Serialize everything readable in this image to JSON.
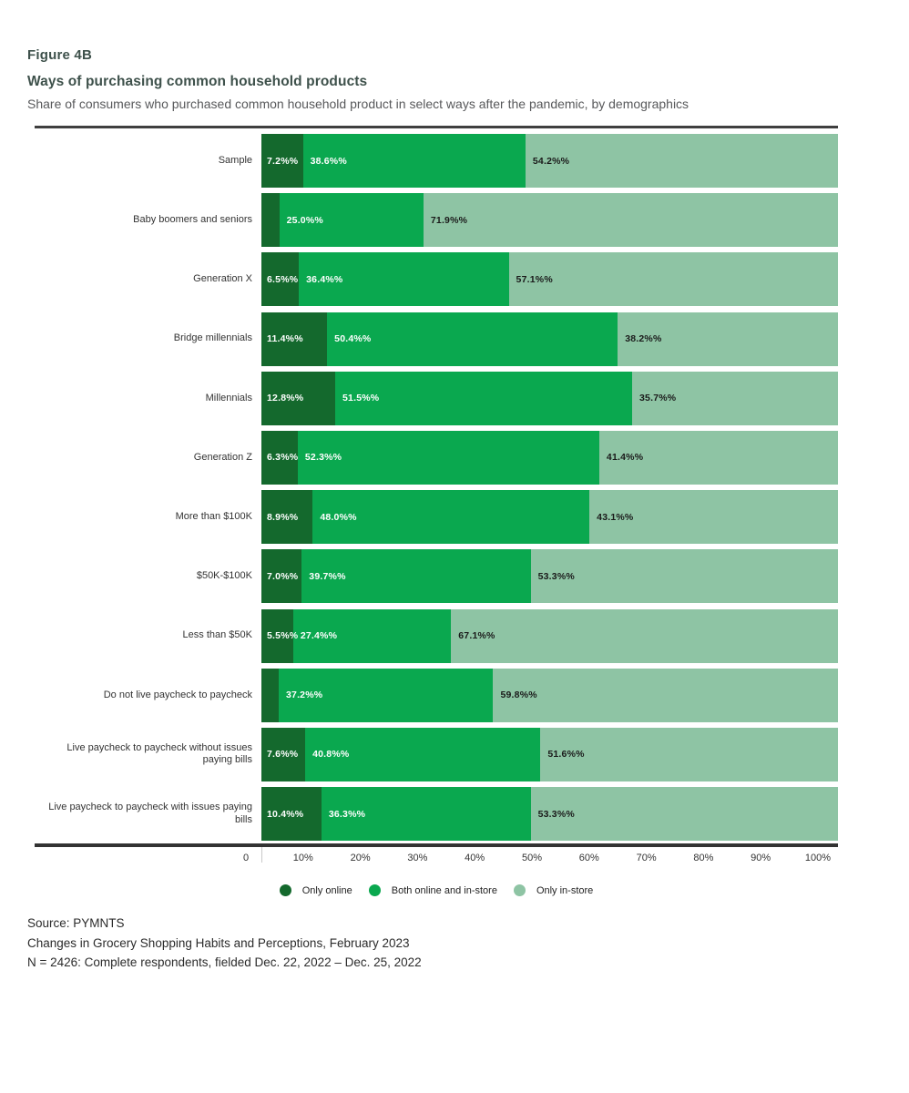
{
  "header": {
    "figure_label": "Figure 4B",
    "title": "Ways of purchasing common household products",
    "subtitle": "Share of consumers who purchased common household product in select ways after the pandemic, by demographics"
  },
  "chart_data": {
    "type": "bar",
    "orientation": "horizontal",
    "stacked": true,
    "unit": "percent",
    "xlim": [
      0,
      100
    ],
    "x_axis_ticks": [
      "0",
      "10%",
      "20%",
      "30%",
      "40%",
      "50%",
      "60%",
      "70%",
      "80%",
      "90%",
      "100%"
    ],
    "legend_position": "bottom",
    "categories": [
      "Sample",
      "Baby boomers and seniors",
      "Generation X",
      "Bridge millennials",
      "Millennials",
      "Generation Z",
      "More than $100K",
      "$50K-$100K",
      "Less than $50K",
      "Do not live paycheck to paycheck",
      "Live paycheck to paycheck without issues paying bills",
      "Live paycheck to paycheck with issues paying bills"
    ],
    "series": [
      {
        "name": "Only online",
        "color": "#14692d",
        "label_color": "#ffffff",
        "values": [
          7.2,
          3.1,
          6.5,
          11.4,
          12.8,
          6.3,
          8.9,
          7.0,
          5.5,
          3.0,
          7.6,
          10.4
        ],
        "labels": [
          "7.2%%",
          "",
          "6.5%%",
          "11.4%%",
          "12.8%%",
          "6.3%%",
          "8.9%%",
          "7.0%%",
          "5.5%%",
          "",
          "7.6%%",
          "10.4%%"
        ]
      },
      {
        "name": "Both online and in-store",
        "color": "#0aa84f",
        "label_color": "#ffffff",
        "values": [
          38.6,
          25.0,
          36.4,
          50.4,
          51.5,
          52.3,
          48.0,
          39.7,
          27.4,
          37.2,
          40.8,
          36.3
        ],
        "labels": [
          "38.6%%",
          "25.0%%",
          "36.4%%",
          "50.4%%",
          "51.5%%",
          "52.3%%",
          "48.0%%",
          "39.7%%",
          "27.4%%",
          "37.2%%",
          "40.8%%",
          "36.3%%"
        ]
      },
      {
        "name": "Only in-store",
        "color": "#8ec4a4",
        "label_color": "#1a1a1a",
        "values": [
          54.2,
          71.9,
          57.1,
          38.2,
          35.7,
          41.4,
          43.1,
          53.3,
          67.1,
          59.8,
          51.6,
          53.3
        ],
        "labels": [
          "54.2%%",
          "71.9%%",
          "57.1%%",
          "38.2%%",
          "35.7%%",
          "41.4%%",
          "43.1%%",
          "53.3%%",
          "67.1%%",
          "59.8%%",
          "51.6%%",
          "53.3%%"
        ]
      }
    ]
  },
  "footer": {
    "line1": "Source: PYMNTS",
    "line2": "Changes in Grocery Shopping Habits and Perceptions, February 2023",
    "line3": "N = 2426: Complete respondents, fielded Dec. 22, 2022 – Dec. 25, 2022"
  }
}
